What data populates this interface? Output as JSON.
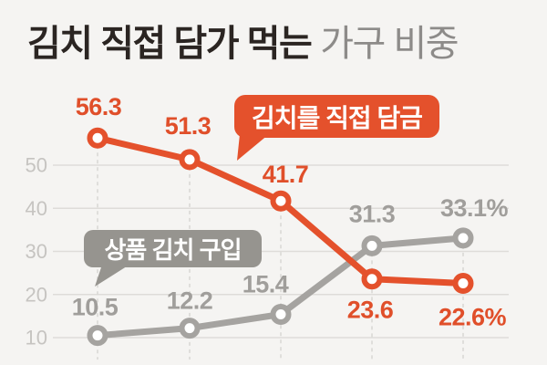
{
  "page": {
    "background": "#f5f4f2"
  },
  "title": {
    "main": "김치 직접 담가 먹는",
    "sub": "가구 비중"
  },
  "chart_data": {
    "type": "line",
    "title": "김치 직접 담가 먹는 가구 비중",
    "xlabel": "",
    "ylabel": "",
    "ylim": [
      5,
      60
    ],
    "yticks": [
      50,
      40,
      30,
      20,
      10
    ],
    "grid": {
      "horizontal": "solid",
      "vertical": "dashed-per-point"
    },
    "x_tick_labels": [],
    "legend_style": "speech-bubble callouts",
    "series": [
      {
        "name": "김치를 직접 담금",
        "color": "#e4512c",
        "label_color": "#e04f2a",
        "callout_color": "#e4512c",
        "values": [
          56.3,
          51.3,
          41.7,
          23.6,
          22.6
        ],
        "value_labels": [
          "56.3",
          "51.3",
          "41.7",
          "23.6",
          "22.6%"
        ]
      },
      {
        "name": "상품 김치 구입",
        "color": "#a5a3a0",
        "label_color": "#a09e9b",
        "callout_color": "#96948f",
        "values": [
          10.5,
          12.2,
          15.4,
          31.3,
          33.1
        ],
        "value_labels": [
          "10.5",
          "12.2",
          "15.4",
          "31.3",
          "33.1%"
        ]
      }
    ],
    "style_colors": {
      "background": "#f5f4f2",
      "h_gridline": "#dedcd9",
      "v_dashline": "#d8d6d3",
      "tick_label": "#c6c4c1",
      "title_main": "#2b2522",
      "title_sub": "#8d8b89",
      "marker_fill": "#ffffff"
    }
  }
}
